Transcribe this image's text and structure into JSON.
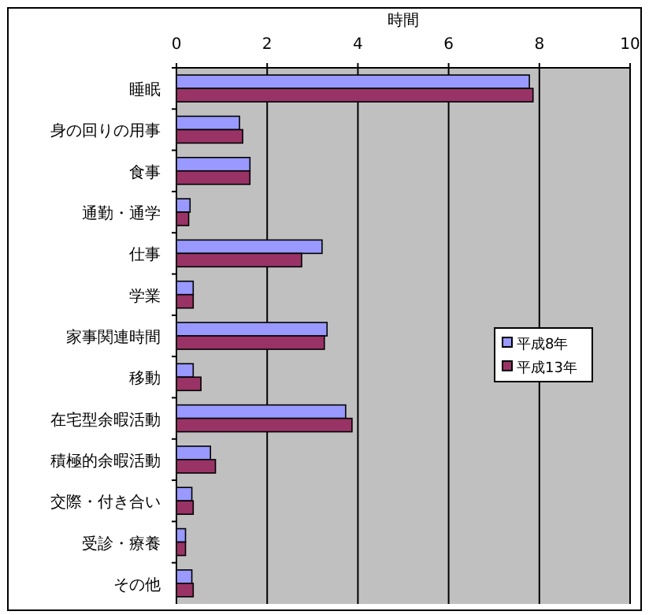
{
  "chart_data": {
    "type": "bar",
    "orientation": "horizontal",
    "xlabel": "時間",
    "categories": [
      "睡眠",
      "身の回りの用事",
      "食事",
      "通勤・通学",
      "仕事",
      "学業",
      "家事関連時間",
      "移動",
      "在宅型余暇活動",
      "積極的余暇活動",
      "交際・付き合い",
      "受診・療養",
      "その他"
    ],
    "series": [
      {
        "name": "平成8年",
        "color": "#9999ff",
        "values": [
          7.78,
          1.39,
          1.62,
          0.3,
          3.21,
          0.37,
          3.32,
          0.37,
          3.73,
          0.75,
          0.34,
          0.2,
          0.34
        ]
      },
      {
        "name": "平成13年",
        "color": "#993366",
        "values": [
          7.86,
          1.46,
          1.62,
          0.27,
          2.76,
          0.37,
          3.26,
          0.54,
          3.87,
          0.86,
          0.37,
          0.2,
          0.37
        ]
      }
    ],
    "xlim": [
      0,
      10
    ],
    "xticks": [
      0,
      2,
      4,
      6,
      8,
      10
    ],
    "grid": "x",
    "legend": "right"
  }
}
